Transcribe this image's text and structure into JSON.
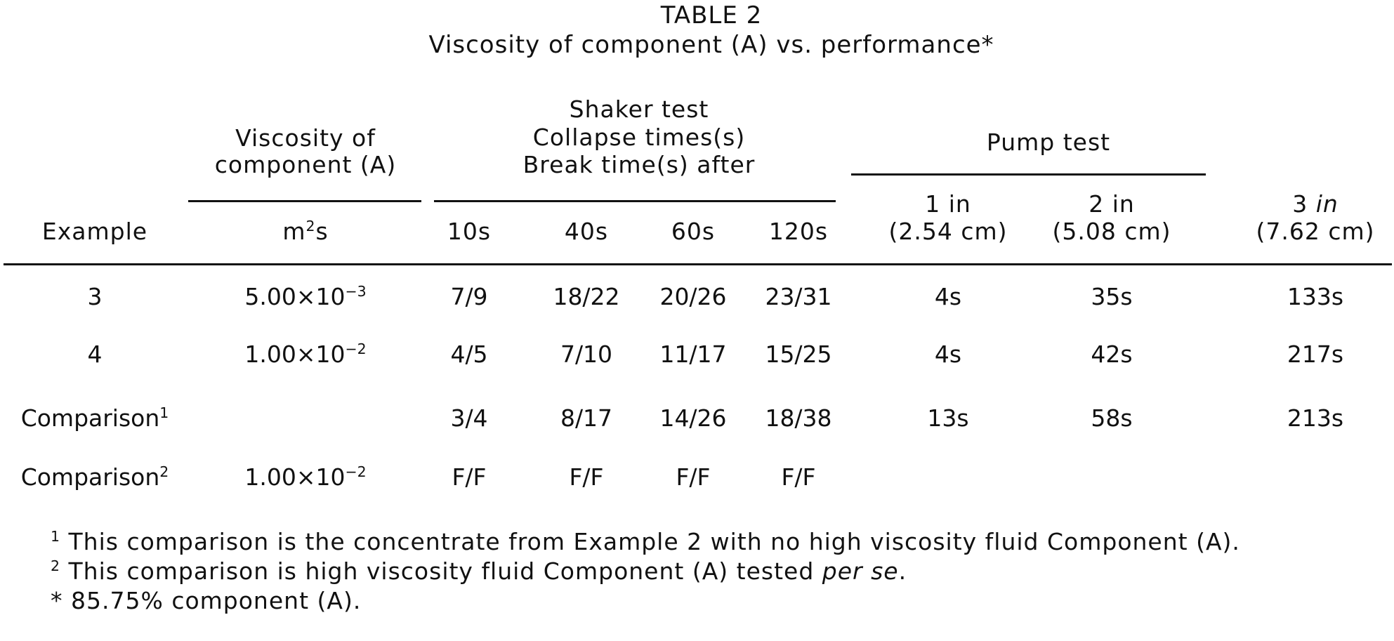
{
  "table": {
    "label": "TABLE 2",
    "caption": "Viscosity of component (A) vs. performance*",
    "headers": {
      "example": "Example",
      "viscosity_line1": "Viscosity of",
      "viscosity_line2": "component (A)",
      "viscosity_unit_base": "m",
      "viscosity_unit_exp": "2",
      "viscosity_unit_tail": "s",
      "shaker_line1": "Shaker test",
      "shaker_line2": "Collapse times(s)",
      "shaker_line3": "Break time(s) after",
      "shaker_cols": [
        "10s",
        "40s",
        "60s",
        "120s"
      ],
      "pump": "Pump test",
      "pump_cols": [
        {
          "a": "1 in",
          "b": "(2.54 cm)"
        },
        {
          "a": "2 in",
          "b": "(5.08 cm)"
        },
        {
          "a_num": "3 ",
          "a_unit": "in",
          "b": "(7.62 cm)"
        }
      ]
    },
    "rows": [
      {
        "example": "3",
        "sup": "",
        "visc_mant": "5.00×10",
        "visc_exp": "−3",
        "shaker": [
          "7/9",
          "18/22",
          "20/26",
          "23/31"
        ],
        "pump": [
          "4s",
          "35s",
          "133s"
        ]
      },
      {
        "example": "4",
        "sup": "",
        "visc_mant": "1.00×10",
        "visc_exp": "−2",
        "shaker": [
          "4/5",
          "7/10",
          "11/17",
          "15/25"
        ],
        "pump": [
          "4s",
          "42s",
          "217s"
        ]
      },
      {
        "example": "Comparison",
        "sup": "1",
        "visc_mant": "",
        "visc_exp": "",
        "shaker": [
          "3/4",
          "8/17",
          "14/26",
          "18/38"
        ],
        "pump": [
          "13s",
          "58s",
          "213s"
        ]
      },
      {
        "example": "Comparison",
        "sup": "2",
        "visc_mant": "1.00×10",
        "visc_exp": "−2",
        "shaker": [
          "F/F",
          "F/F",
          "F/F",
          "F/F"
        ],
        "pump": [
          "",
          "",
          ""
        ]
      }
    ],
    "footnotes": [
      {
        "mark": "1",
        "text": "This comparison is the concentrate from Example 2 with no high viscosity fluid Component (A)."
      },
      {
        "mark": "2",
        "text_a": "This comparison is high viscosity fluid Component (A) tested ",
        "text_em": "per se",
        "text_b": "."
      },
      {
        "mark": "*",
        "text": "85.75% component (A)."
      }
    ]
  }
}
